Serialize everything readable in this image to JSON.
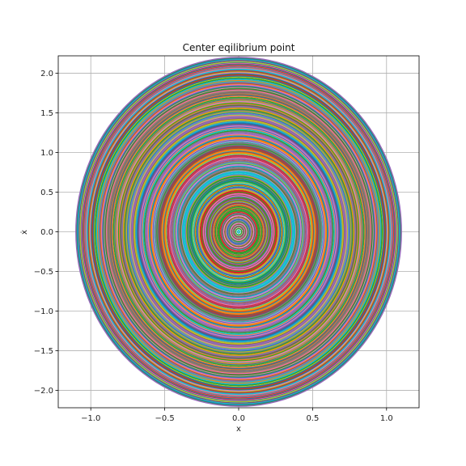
{
  "chart_data": {
    "type": "line",
    "title": "Center eqilibrium point",
    "xlabel": "x",
    "ylabel": "ẋ",
    "xlim": [
      -1.22,
      1.22
    ],
    "ylim": [
      -2.22,
      2.22
    ],
    "x_ticks": [
      -1.0,
      -0.5,
      0.0,
      0.5,
      1.0
    ],
    "x_tick_labels": [
      "−1.0",
      "−0.5",
      "0.0",
      "0.5",
      "1.0"
    ],
    "y_ticks": [
      -2.0,
      -1.5,
      -1.0,
      -0.5,
      0.0,
      0.5,
      1.0,
      1.5,
      2.0
    ],
    "y_tick_labels": [
      "−2.0",
      "−1.5",
      "−1.0",
      "−0.5",
      "0.0",
      "0.5",
      "1.0",
      "1.5",
      "2.0"
    ],
    "grid": true,
    "trajectory_family": "elliptical orbits x(t)=A cos(t), x'(t)=-2A sin(t)",
    "amplitude_range": [
      0.01,
      1.1
    ],
    "orbit_count": 220,
    "colors": [
      "#1f77b4",
      "#ff7f0e",
      "#2ca02c",
      "#d62728",
      "#9467bd",
      "#8c564b",
      "#e377c2",
      "#7f7f7f",
      "#bcbd22",
      "#17becf"
    ]
  }
}
